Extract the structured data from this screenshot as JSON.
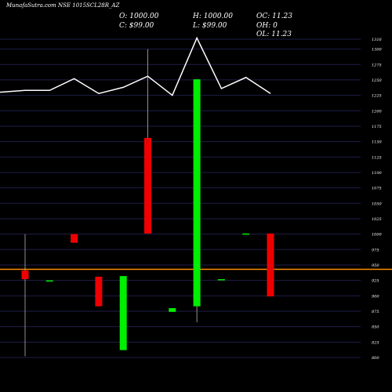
{
  "header": {
    "title_overlap": "MunafaSutra.com NSE 1015SCL28R_AZ",
    "open": "O: 1000.00",
    "close": "C: $99.00",
    "high": "H: 1000.00",
    "low": "L: $99.00",
    "oc": "OC: 11.23",
    "oh": "OH: 0",
    "ol": "OL: 11.23"
  },
  "colors": {
    "background": "#000000",
    "up": "#00ee00",
    "down": "#ee0000",
    "line": "#ffffff",
    "gridline": "#1e1e4a",
    "level": "#ff8c00",
    "axis_text": "#ffffff"
  },
  "chart_data": {
    "type": "candlestick",
    "y_ticks": [
      1316,
      1300,
      1275,
      1250,
      1225,
      1200,
      1175,
      1150,
      1125,
      1100,
      1075,
      1050,
      1025,
      1000,
      975,
      950,
      925,
      900,
      875,
      850,
      825,
      800
    ],
    "level_line": 943,
    "candles": [
      {
        "open": 927,
        "high": 1000,
        "low": 802,
        "close": 941,
        "dir": "down"
      },
      {
        "open": 925,
        "high": 925,
        "low": 924,
        "close": 925,
        "dir": "up"
      },
      {
        "open": 1000,
        "high": 1000,
        "low": 986,
        "close": 986,
        "dir": "down"
      },
      {
        "open": 931,
        "high": 931,
        "low": 883,
        "close": 883,
        "dir": "down"
      },
      {
        "open": 812,
        "high": 932,
        "low": 812,
        "close": 932,
        "dir": "up"
      },
      {
        "open": 1156,
        "high": 1300,
        "low": 1001,
        "close": 1001,
        "dir": "down"
      },
      {
        "open": 874,
        "high": 880,
        "low": 874,
        "close": 880,
        "dir": "up"
      },
      {
        "open": 883,
        "high": 1251,
        "low": 857,
        "close": 1251,
        "dir": "up"
      },
      {
        "open": 927,
        "high": 927,
        "low": 926,
        "close": 927,
        "dir": "up"
      },
      {
        "open": 1001,
        "high": 1001,
        "low": 1000,
        "close": 1001,
        "dir": "up"
      },
      {
        "open": 1001,
        "high": 1001,
        "low": 899,
        "close": 899,
        "dir": "down"
      }
    ],
    "line_series": [
      1230,
      1233,
      1233,
      1252,
      1228,
      1238,
      1256,
      1225,
      1318,
      1236,
      1254,
      1228
    ]
  }
}
